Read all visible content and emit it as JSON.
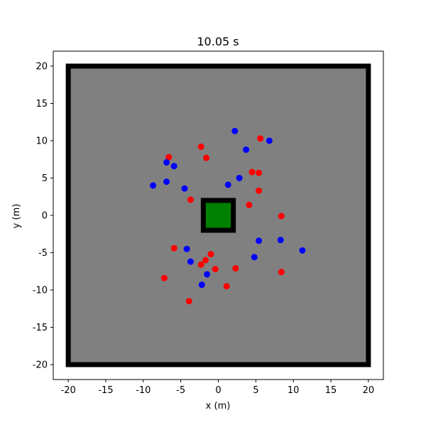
{
  "chart_data": {
    "type": "scatter",
    "title": "10.05 s",
    "xlabel": "x (m)",
    "ylabel": "y (m)",
    "xlim": [
      -22,
      22
    ],
    "ylim": [
      -22,
      22
    ],
    "xticks": [
      -20,
      -15,
      -10,
      -5,
      0,
      5,
      10,
      15,
      20
    ],
    "yticks": [
      -20,
      -15,
      -10,
      -5,
      0,
      5,
      10,
      15,
      20
    ],
    "arena": {
      "xmin": -20,
      "xmax": 20,
      "ymin": -20,
      "ymax": 20
    },
    "obstacle": {
      "xmin": -2,
      "xmax": 2,
      "ymin": -2,
      "ymax": 2
    },
    "colors": {
      "arena_fill": "#808080",
      "wall": "#000000",
      "obstacle_fill": "#008000",
      "series_red": "#ff0000",
      "series_blue": "#0000ff"
    },
    "series": [
      {
        "name": "red",
        "color": "#ff0000",
        "points": [
          [
            5.6,
            10.3
          ],
          [
            -2.3,
            9.2
          ],
          [
            -6.6,
            7.8
          ],
          [
            -1.6,
            7.7
          ],
          [
            4.5,
            5.8
          ],
          [
            5.4,
            5.7
          ],
          [
            5.4,
            3.3
          ],
          [
            -3.7,
            2.1
          ],
          [
            4.1,
            1.4
          ],
          [
            8.4,
            -0.1
          ],
          [
            -5.9,
            -4.4
          ],
          [
            -1.0,
            -5.2
          ],
          [
            -1.7,
            -6.0
          ],
          [
            -2.3,
            -6.6
          ],
          [
            -0.4,
            -7.2
          ],
          [
            2.3,
            -7.1
          ],
          [
            8.4,
            -7.6
          ],
          [
            -7.2,
            -8.4
          ],
          [
            1.1,
            -9.5
          ],
          [
            -3.9,
            -11.5
          ]
        ]
      },
      {
        "name": "blue",
        "color": "#0000ff",
        "points": [
          [
            2.2,
            11.3
          ],
          [
            6.8,
            10.0
          ],
          [
            3.7,
            8.8
          ],
          [
            -6.9,
            7.1
          ],
          [
            -5.9,
            6.6
          ],
          [
            2.8,
            5.0
          ],
          [
            -6.9,
            4.5
          ],
          [
            -8.7,
            4.0
          ],
          [
            1.3,
            4.1
          ],
          [
            -4.5,
            3.6
          ],
          [
            5.4,
            -3.4
          ],
          [
            8.3,
            -3.3
          ],
          [
            -4.2,
            -4.5
          ],
          [
            11.2,
            -4.7
          ],
          [
            4.8,
            -5.6
          ],
          [
            -3.7,
            -6.2
          ],
          [
            -1.5,
            -7.9
          ],
          [
            -2.2,
            -9.3
          ]
        ]
      }
    ]
  }
}
